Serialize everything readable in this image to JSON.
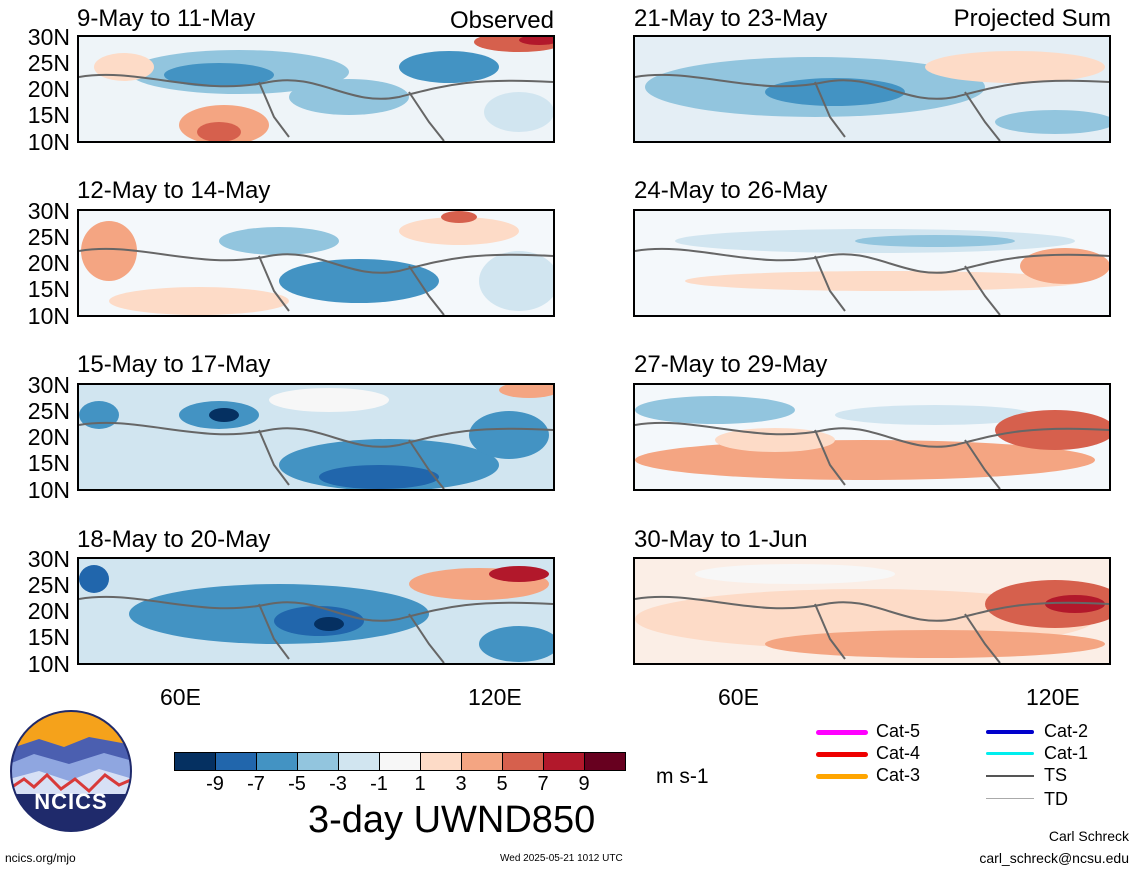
{
  "left_header": "Observed",
  "right_header": "Projected Sum",
  "panels_left": [
    {
      "title": "9-May to 11-May"
    },
    {
      "title": "12-May to 14-May"
    },
    {
      "title": "15-May to 17-May"
    },
    {
      "title": "18-May to 20-May"
    }
  ],
  "panels_right": [
    {
      "title": "21-May to 23-May"
    },
    {
      "title": "24-May to 26-May"
    },
    {
      "title": "27-May to 29-May"
    },
    {
      "title": "30-May to 1-Jun"
    }
  ],
  "lat_labels": [
    "30N",
    "25N",
    "20N",
    "15N",
    "10N"
  ],
  "lon_labels": {
    "left": [
      "60E",
      "120E"
    ],
    "right": [
      "60E",
      "120E"
    ]
  },
  "colorbar": {
    "labels": [
      "-9",
      "-7",
      "-5",
      "-3",
      "-1",
      "1",
      "3",
      "5",
      "7",
      "9"
    ],
    "colors": [
      "#053061",
      "#2166ac",
      "#4393c3",
      "#92c5de",
      "#d1e5f0",
      "#f7f7f7",
      "#fddbc7",
      "#f4a582",
      "#d6604d",
      "#b2182b",
      "#67001f"
    ],
    "units": "m s-1"
  },
  "chart_title": "3-day UWND850",
  "storm_legend": [
    {
      "label": "Cat-5",
      "color": "#ff00ff"
    },
    {
      "label": "Cat-4",
      "color": "#ee0000"
    },
    {
      "label": "Cat-3",
      "color": "#ffa500"
    },
    {
      "label": "Cat-2",
      "color": "#0000cc"
    },
    {
      "label": "Cat-1",
      "color": "#00eeee"
    },
    {
      "label": "TS",
      "color": "#555555"
    },
    {
      "label": "TD",
      "color": "#aaaaaa"
    }
  ],
  "logo_text": "NCICS",
  "footer": {
    "url": "ncics.org/mjo",
    "timestamp": "Wed 2025-05-21 1012 UTC",
    "author": "Carl Schreck",
    "email": "carl_schreck@ncsu.edu"
  }
}
